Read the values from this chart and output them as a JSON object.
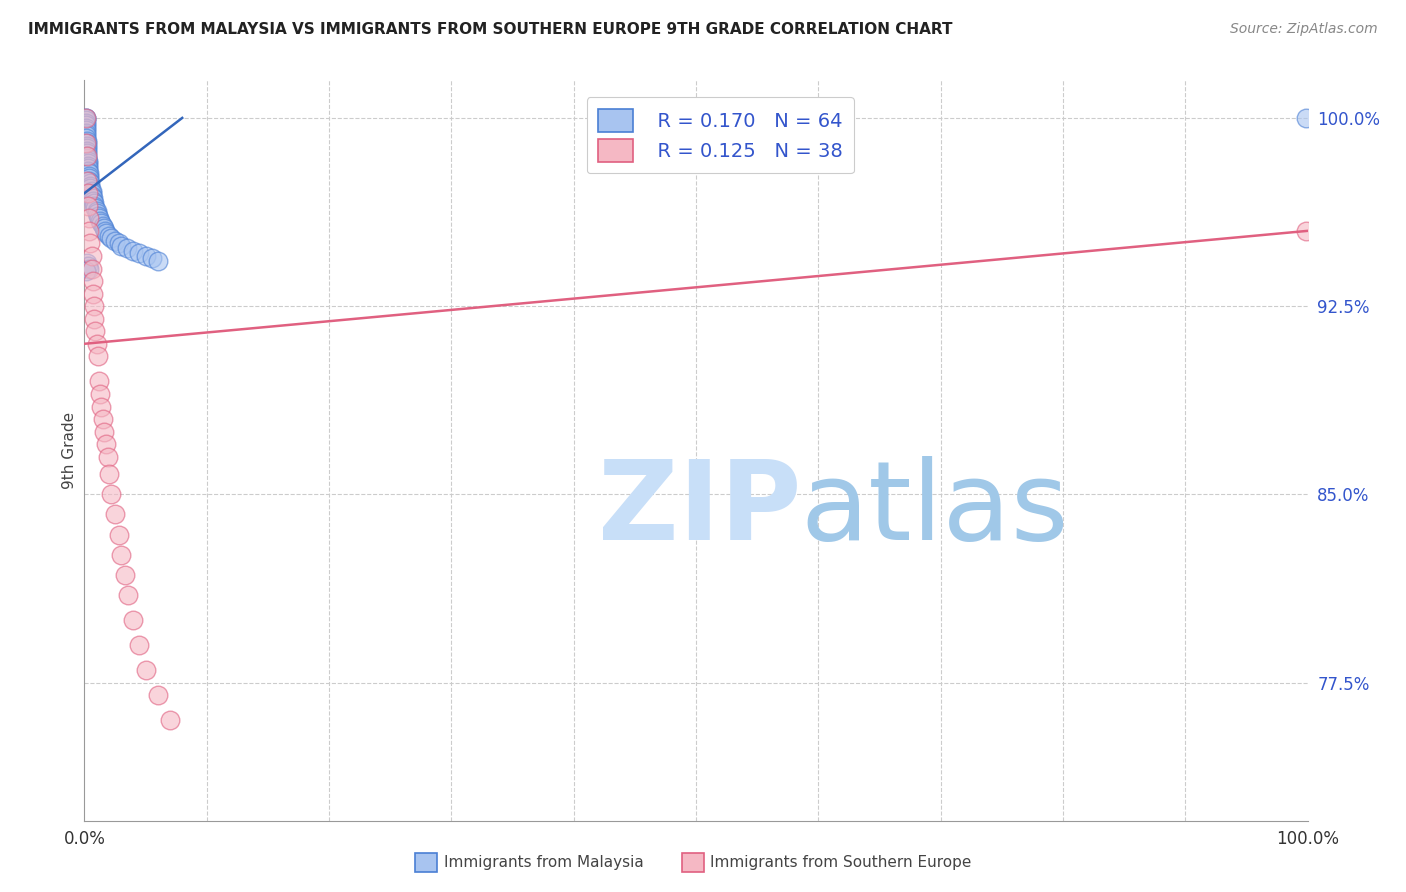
{
  "title": "IMMIGRANTS FROM MALAYSIA VS IMMIGRANTS FROM SOUTHERN EUROPE 9TH GRADE CORRELATION CHART",
  "source": "Source: ZipAtlas.com",
  "ylabel": "9th Grade",
  "xlim": [
    0.0,
    1.0
  ],
  "ylim": [
    0.72,
    1.015
  ],
  "ytick_labels": [
    "77.5%",
    "85.0%",
    "92.5%",
    "100.0%"
  ],
  "ytick_values": [
    0.775,
    0.85,
    0.925,
    1.0
  ],
  "legend_r1": "R = 0.170",
  "legend_n1": "N = 64",
  "legend_r2": "R = 0.125",
  "legend_n2": "N = 38",
  "legend_label1": "Immigrants from Malaysia",
  "legend_label2": "Immigrants from Southern Europe",
  "blue_color": "#a8c4f0",
  "blue_edge_color": "#4a7fd4",
  "pink_color": "#f5b8c4",
  "pink_edge_color": "#e06080",
  "blue_line_color": "#3366bb",
  "pink_line_color": "#e06080",
  "watermark_zip_color": "#c8dff8",
  "watermark_atlas_color": "#a0c8e8",
  "blue_scatter_x": [
    0.001,
    0.001,
    0.001,
    0.001,
    0.001,
    0.001,
    0.001,
    0.001,
    0.001,
    0.001,
    0.002,
    0.002,
    0.002,
    0.002,
    0.002,
    0.002,
    0.002,
    0.002,
    0.003,
    0.003,
    0.003,
    0.003,
    0.003,
    0.004,
    0.004,
    0.004,
    0.004,
    0.005,
    0.005,
    0.005,
    0.006,
    0.006,
    0.006,
    0.007,
    0.007,
    0.008,
    0.008,
    0.009,
    0.01,
    0.01,
    0.011,
    0.012,
    0.013,
    0.014,
    0.015,
    0.016,
    0.017,
    0.018,
    0.02,
    0.022,
    0.025,
    0.028,
    0.03,
    0.035,
    0.04,
    0.045,
    0.05,
    0.055,
    0.06,
    0.002,
    0.003,
    0.004,
    0.001,
    0.999
  ],
  "blue_scatter_y": [
    1.0,
    1.0,
    0.999,
    0.998,
    0.997,
    0.996,
    0.995,
    0.994,
    0.993,
    0.992,
    0.991,
    0.99,
    0.989,
    0.988,
    0.987,
    0.986,
    0.985,
    0.984,
    0.983,
    0.982,
    0.981,
    0.98,
    0.979,
    0.978,
    0.977,
    0.976,
    0.975,
    0.974,
    0.973,
    0.972,
    0.971,
    0.97,
    0.969,
    0.968,
    0.967,
    0.966,
    0.965,
    0.964,
    0.963,
    0.962,
    0.961,
    0.96,
    0.959,
    0.958,
    0.957,
    0.956,
    0.955,
    0.954,
    0.953,
    0.952,
    0.951,
    0.95,
    0.949,
    0.948,
    0.947,
    0.946,
    0.945,
    0.944,
    0.943,
    0.942,
    0.941,
    0.94,
    0.939,
    1.0
  ],
  "pink_scatter_x": [
    0.001,
    0.001,
    0.002,
    0.002,
    0.003,
    0.003,
    0.004,
    0.004,
    0.005,
    0.006,
    0.006,
    0.007,
    0.007,
    0.008,
    0.008,
    0.009,
    0.01,
    0.011,
    0.012,
    0.013,
    0.014,
    0.015,
    0.016,
    0.018,
    0.019,
    0.02,
    0.022,
    0.025,
    0.028,
    0.03,
    0.033,
    0.036,
    0.04,
    0.045,
    0.05,
    0.06,
    0.07,
    0.999
  ],
  "pink_scatter_y": [
    1.0,
    0.99,
    0.985,
    0.975,
    0.97,
    0.965,
    0.96,
    0.955,
    0.95,
    0.945,
    0.94,
    0.935,
    0.93,
    0.925,
    0.92,
    0.915,
    0.91,
    0.905,
    0.895,
    0.89,
    0.885,
    0.88,
    0.875,
    0.87,
    0.865,
    0.858,
    0.85,
    0.842,
    0.834,
    0.826,
    0.818,
    0.81,
    0.8,
    0.79,
    0.78,
    0.77,
    0.76,
    0.955
  ],
  "blue_trend": [
    0.0,
    0.97,
    0.08,
    1.0
  ],
  "pink_trend": [
    0.0,
    0.91,
    1.0,
    0.955
  ]
}
